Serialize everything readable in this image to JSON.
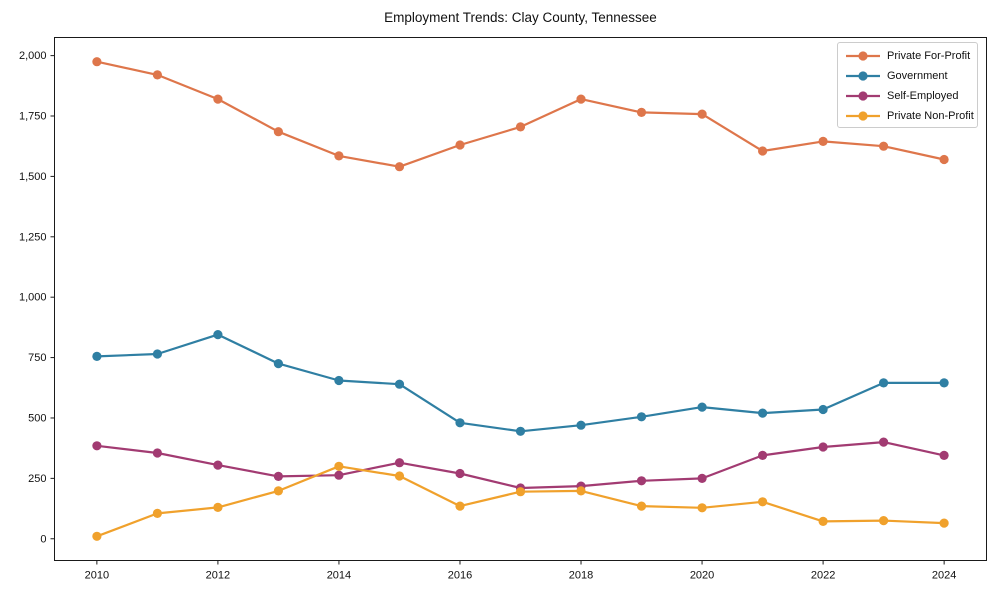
{
  "page": {
    "background": "#ffffff",
    "axis_color": "#1a1a1a"
  },
  "chart_data": {
    "type": "line",
    "title": "Employment Trends: Clay County, Tennessee",
    "xlabel": "",
    "ylabel": "",
    "grid": false,
    "legend_position": "upper right",
    "marker": "circle",
    "x": [
      2010,
      2011,
      2012,
      2013,
      2014,
      2015,
      2016,
      2017,
      2018,
      2019,
      2020,
      2021,
      2022,
      2023,
      2024
    ],
    "series": [
      {
        "name": "Private For-Profit",
        "color": "#DE764B",
        "values": [
          1975,
          1920,
          1820,
          1685,
          1585,
          1540,
          1630,
          1705,
          1820,
          1765,
          1758,
          1605,
          1645,
          1625,
          1570
        ]
      },
      {
        "name": "Government",
        "color": "#2F7FA3",
        "values": [
          755,
          765,
          845,
          725,
          655,
          640,
          480,
          445,
          470,
          505,
          545,
          520,
          535,
          645,
          645
        ]
      },
      {
        "name": "Self-Employed",
        "color": "#A23B72",
        "values": [
          385,
          355,
          305,
          258,
          263,
          315,
          270,
          210,
          218,
          240,
          250,
          345,
          380,
          400,
          345
        ]
      },
      {
        "name": "Private Non-Profit",
        "color": "#F0A12C",
        "values": [
          10,
          105,
          130,
          198,
          300,
          260,
          135,
          195,
          198,
          135,
          128,
          153,
          72,
          75,
          65
        ]
      }
    ],
    "xlim": [
      2009.3,
      2024.7
    ],
    "ylim": [
      -90,
      2075
    ],
    "xticks": {
      "values": [
        2010,
        2012,
        2014,
        2016,
        2018,
        2020,
        2022,
        2024
      ],
      "labels": [
        "2010",
        "2012",
        "2014",
        "2016",
        "2018",
        "2020",
        "2022",
        "2024"
      ]
    },
    "yticks": {
      "values": [
        0,
        250,
        500,
        750,
        1000,
        1250,
        1500,
        1750,
        2000
      ],
      "labels": [
        "0",
        "250",
        "500",
        "750",
        "1,000",
        "1,250",
        "1,500",
        "1,750",
        "2,000"
      ]
    }
  }
}
